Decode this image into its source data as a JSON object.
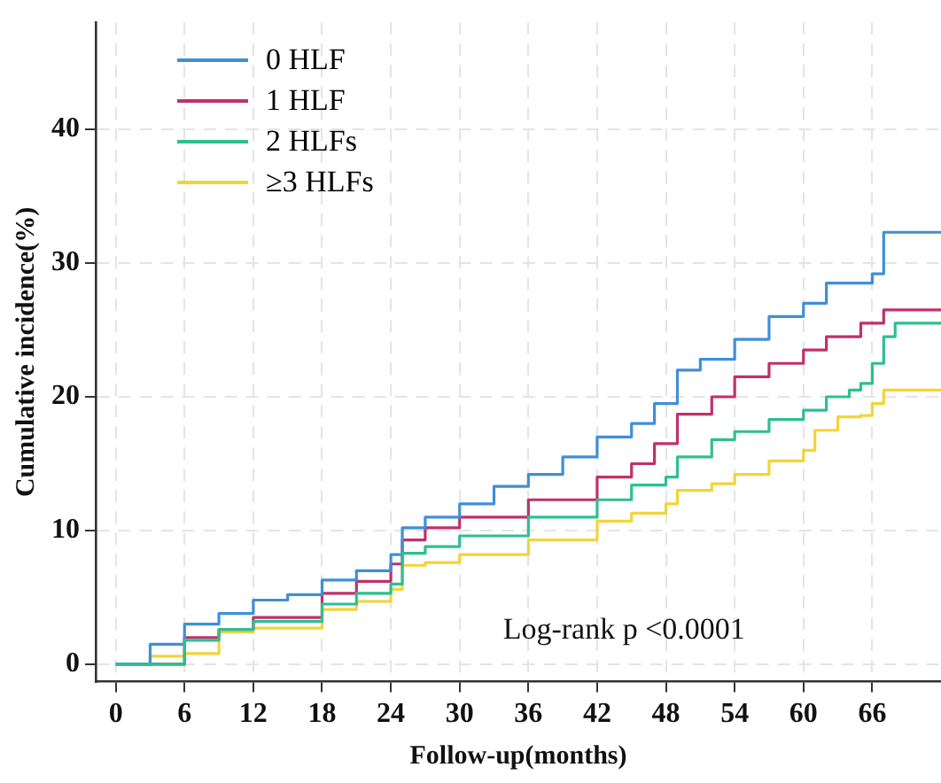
{
  "chart_data": {
    "type": "step",
    "xlabel": "Follow-up(months)",
    "ylabel": "Cumulative incidence(%)",
    "annotations": [
      "Log-rank p <0.0001"
    ],
    "xlim": [
      -1.75,
      72
    ],
    "ylim": [
      -1.3,
      48
    ],
    "xticks": [
      0,
      6,
      12,
      18,
      24,
      30,
      36,
      42,
      48,
      54,
      60,
      66
    ],
    "yticks": [
      0,
      10,
      20,
      30,
      40
    ],
    "grid": true,
    "legend": "top left",
    "line_style": "solid",
    "marker": "none",
    "series": [
      {
        "name": "0 HLF",
        "color": "#3f8fd8",
        "x": [
          0,
          3,
          6,
          9,
          12,
          15,
          18,
          21,
          24,
          25,
          27,
          30,
          33,
          36,
          39,
          42,
          45,
          47,
          49,
          51,
          54,
          57,
          60,
          62,
          65,
          66,
          67,
          72
        ],
        "values": [
          0,
          1.5,
          3,
          3.8,
          4.8,
          5.2,
          6.3,
          7,
          8.2,
          10.2,
          11,
          12,
          13.3,
          14.2,
          15.5,
          17,
          18,
          19.5,
          22,
          22.8,
          24.3,
          26,
          27,
          28.5,
          28.5,
          29.2,
          32.3,
          32.3
        ]
      },
      {
        "name": "1 HLF",
        "color": "#c0306a",
        "x": [
          0,
          6,
          9,
          12,
          18,
          21,
          24,
          25,
          27,
          30,
          36,
          42,
          45,
          47,
          49,
          52,
          54,
          57,
          60,
          62,
          65,
          67,
          72
        ],
        "values": [
          0,
          2,
          2.6,
          3.5,
          5.3,
          6.2,
          7.5,
          9.3,
          10.2,
          11,
          12.3,
          14,
          15,
          16.5,
          18.7,
          20,
          21.5,
          22.5,
          23.5,
          24.5,
          25.5,
          26.5,
          26.5
        ]
      },
      {
        "name": "2 HLFs",
        "color": "#2ebf91",
        "x": [
          0,
          6,
          9,
          12,
          18,
          21,
          24,
          25,
          27,
          30,
          36,
          42,
          45,
          48,
          49,
          52,
          54,
          57,
          60,
          62,
          64,
          65,
          66,
          67,
          68,
          72
        ],
        "values": [
          0,
          1.8,
          2.6,
          3.2,
          4.5,
          5.3,
          6,
          8.3,
          8.8,
          9.6,
          11,
          12.3,
          13.4,
          14,
          15.5,
          16.8,
          17.4,
          18.3,
          19,
          20,
          20.5,
          21,
          22.5,
          24.5,
          25.5,
          25.5
        ]
      },
      {
        "name": "≥3 HLFs",
        "color": "#f2d438",
        "x": [
          0,
          3,
          6,
          9,
          12,
          18,
          21,
          24,
          25,
          27,
          30,
          36,
          42,
          45,
          48,
          49,
          52,
          54,
          57,
          60,
          61,
          63,
          65,
          66,
          67,
          72
        ],
        "values": [
          0,
          0.6,
          0.8,
          2.4,
          2.7,
          4.1,
          4.7,
          5.6,
          7.4,
          7.6,
          8.2,
          9.3,
          10.7,
          11.3,
          12,
          13,
          13.5,
          14.2,
          15.2,
          16,
          17.5,
          18.5,
          18.6,
          19.5,
          20.5,
          20.5
        ]
      }
    ]
  }
}
